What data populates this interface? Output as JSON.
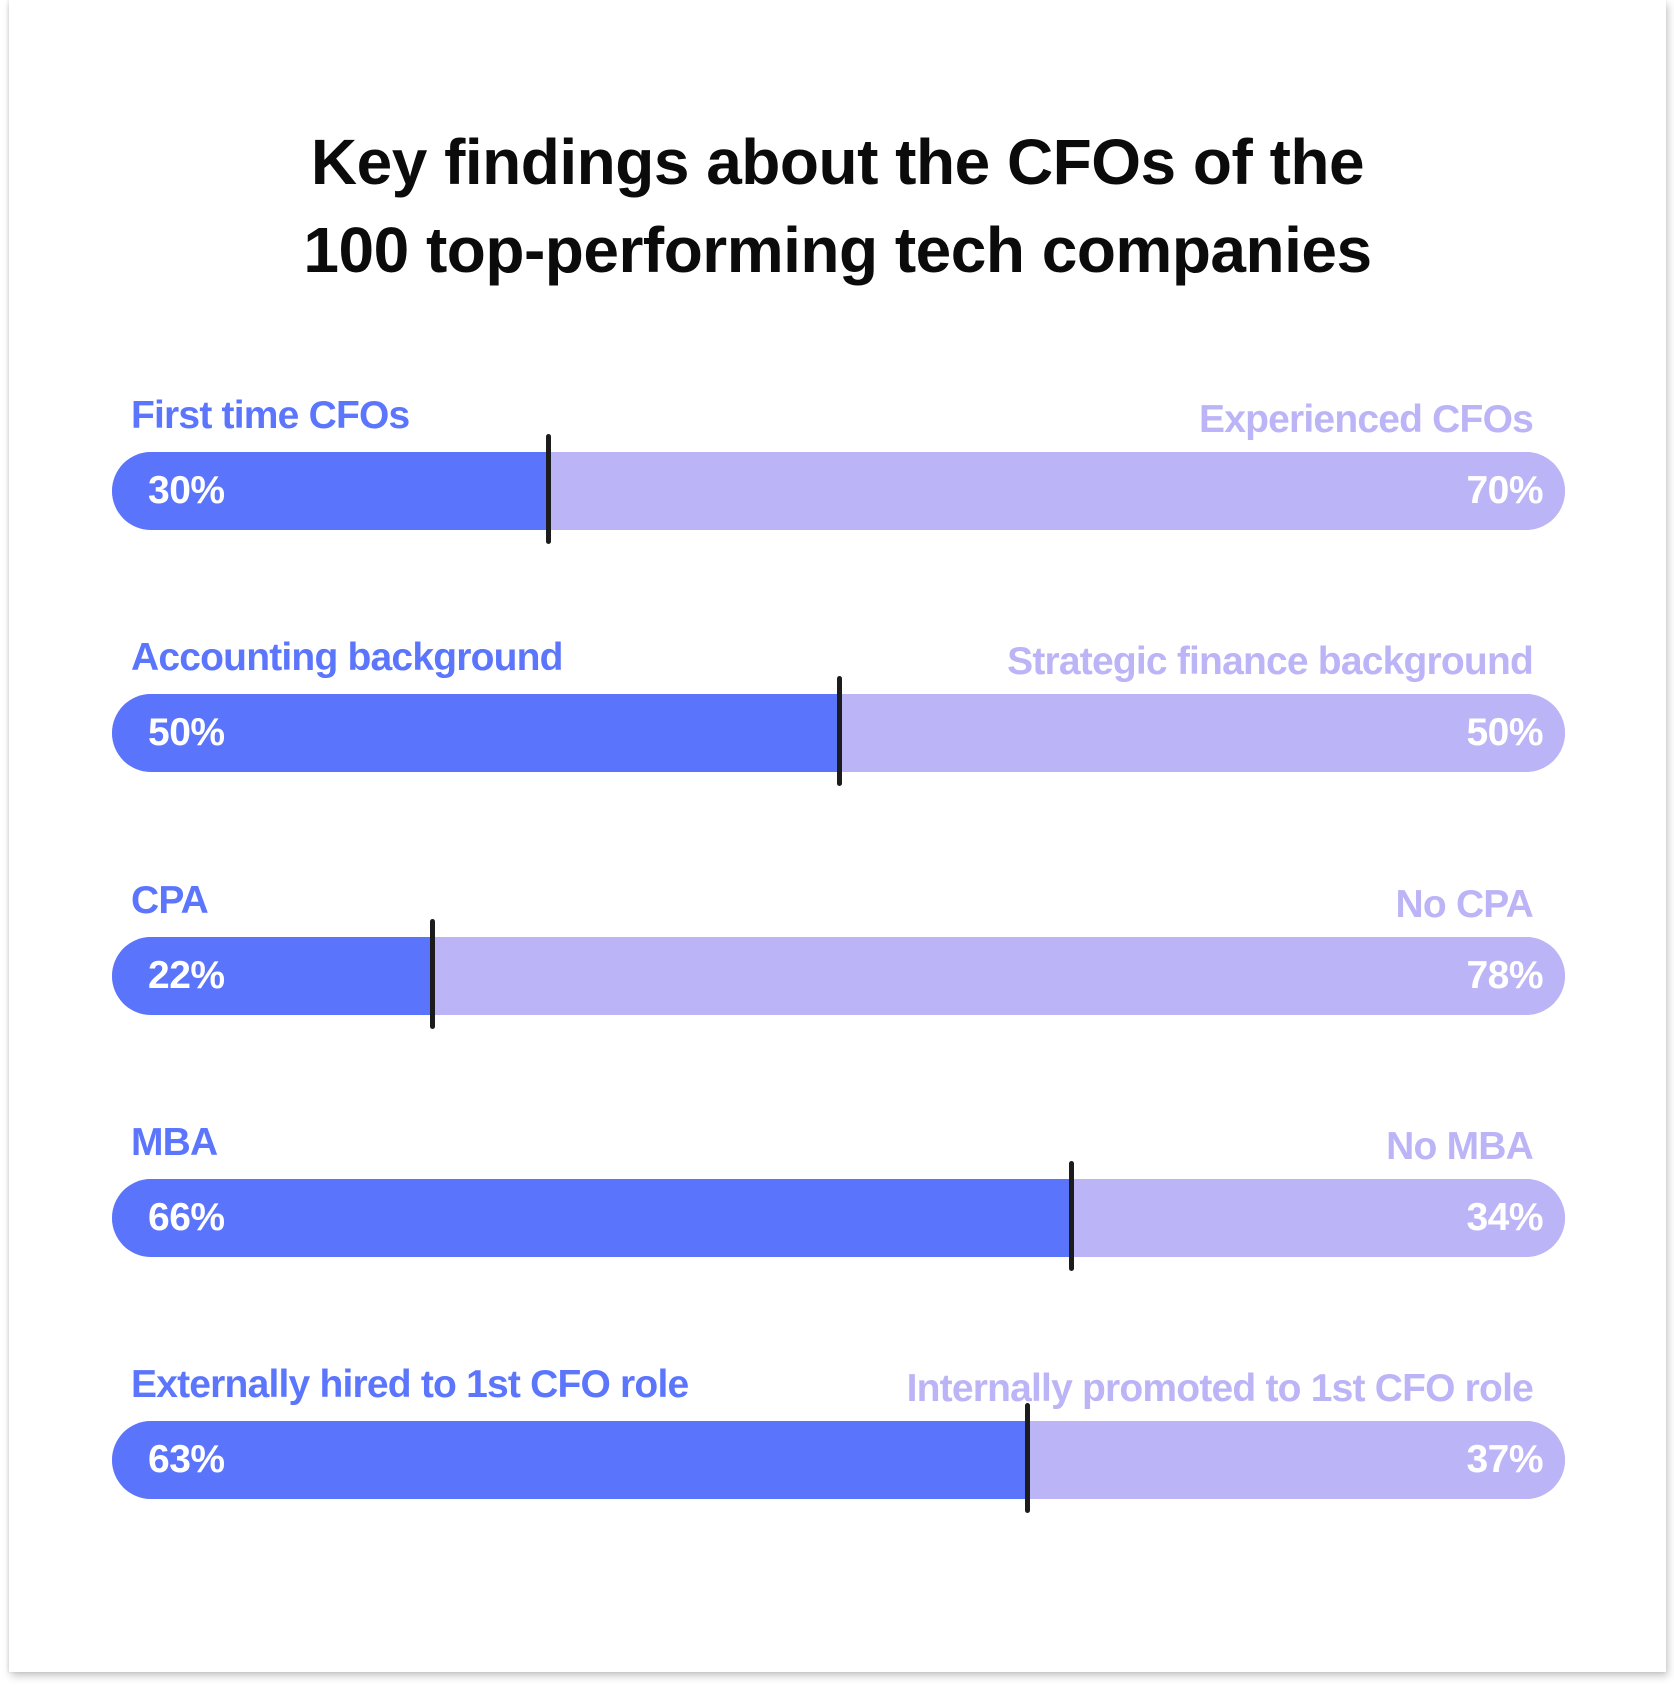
{
  "title": {
    "line1": "Key findings about the CFOs of the",
    "line2": "100 top-performing tech companies"
  },
  "colors": {
    "primary": "#5b74fc",
    "secondary": "#bbb4f6",
    "marker": "#1c1c1c",
    "title": "#0b0b0b"
  },
  "chart_data": {
    "type": "bar",
    "subtype": "stacked-horizontal-100",
    "title": "Key findings about the CFOs of the 100 top-performing tech companies",
    "unit": "%",
    "xlim": [
      0,
      100
    ],
    "grid": false,
    "series": [
      {
        "name": "left",
        "color": "#5b74fc"
      },
      {
        "name": "right",
        "color": "#bbb4f6"
      }
    ],
    "rows": [
      {
        "left_label": "First time CFOs",
        "right_label": "Experienced CFOs",
        "left_value": 30,
        "right_value": 70,
        "left_text": "30%",
        "right_text": "70%"
      },
      {
        "left_label": "Accounting background",
        "right_label": "Strategic finance background",
        "left_value": 50,
        "right_value": 50,
        "left_text": "50%",
        "right_text": "50%"
      },
      {
        "left_label": "CPA",
        "right_label": "No CPA",
        "left_value": 22,
        "right_value": 78,
        "left_text": "22%",
        "right_text": "78%"
      },
      {
        "left_label": "MBA",
        "right_label": "No MBA",
        "left_value": 66,
        "right_value": 34,
        "left_text": "66%",
        "right_text": "34%"
      },
      {
        "left_label": "Externally hired to 1st CFO role",
        "right_label": "Internally promoted to 1st CFO role",
        "left_value": 63,
        "right_value": 37,
        "left_text": "63%",
        "right_text": "37%"
      }
    ]
  }
}
